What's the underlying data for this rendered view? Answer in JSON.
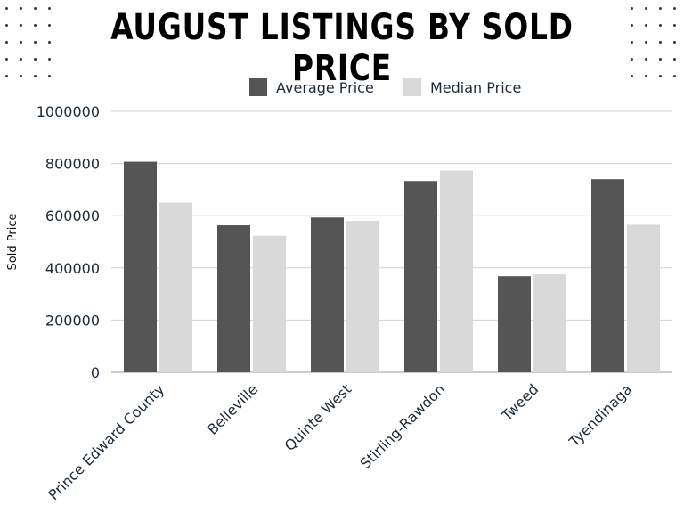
{
  "chart_data": {
    "type": "bar",
    "title": "AUGUST LISTINGS BY SOLD PRICE",
    "xlabel": "",
    "ylabel": "Sold Price",
    "ylim": [
      0,
      1000000
    ],
    "yticks": [
      "0",
      "200000",
      "400000",
      "600000",
      "800000",
      "1000000"
    ],
    "categories": [
      "Prince Edward County",
      "Belleville",
      "Quinte West",
      "Stirling-Rawdon",
      "Tweed",
      "Tyendinaga"
    ],
    "series": [
      {
        "name": "Average Price",
        "color": "#555555",
        "values": [
          807000,
          563000,
          593000,
          733000,
          368000,
          740000
        ]
      },
      {
        "name": "Median Price",
        "color": "#d9d9d9",
        "values": [
          650000,
          523000,
          580000,
          773000,
          375000,
          565000
        ]
      }
    ],
    "legend": "top-center",
    "grid": true
  }
}
